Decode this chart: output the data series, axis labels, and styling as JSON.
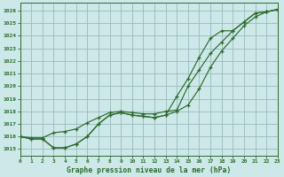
{
  "title": "Graphe pression niveau de la mer (hPa)",
  "bg_color": "#cce8e8",
  "grid_color": "#99bbbb",
  "line_color": "#2d6b2d",
  "xlim": [
    0,
    23
  ],
  "ylim": [
    1014.5,
    1026.6
  ],
  "yticks": [
    1015,
    1016,
    1017,
    1018,
    1019,
    1020,
    1021,
    1022,
    1023,
    1024,
    1025,
    1026
  ],
  "xticks": [
    0,
    1,
    2,
    3,
    4,
    5,
    6,
    7,
    8,
    9,
    10,
    11,
    12,
    13,
    14,
    15,
    16,
    17,
    18,
    19,
    20,
    21,
    22,
    23
  ],
  "curve_top": [
    1016.0,
    1015.9,
    1015.9,
    1016.3,
    1016.4,
    1016.6,
    1017.1,
    1017.5,
    1017.9,
    1018.0,
    1017.9,
    1017.8,
    1017.8,
    1018.0,
    1018.1,
    1020.0,
    1021.3,
    1022.6,
    1023.5,
    1024.4,
    1025.1,
    1025.8,
    1025.9,
    1026.1
  ],
  "curve_mid": [
    1016.0,
    1015.8,
    1015.8,
    1015.1,
    1015.1,
    1015.4,
    1016.0,
    1017.0,
    1017.7,
    1017.9,
    1017.7,
    1017.6,
    1017.5,
    1017.7,
    1018.0,
    1018.5,
    1019.8,
    1021.5,
    1022.8,
    1023.8,
    1024.8,
    1025.5,
    1025.9,
    1026.1
  ],
  "curve_bot": [
    1016.0,
    1015.8,
    1015.8,
    1015.1,
    1015.1,
    1015.4,
    1016.0,
    1017.0,
    1017.7,
    1017.9,
    1017.7,
    1017.6,
    1017.5,
    1017.7,
    1019.2,
    1020.6,
    1022.3,
    1023.8,
    1024.4,
    1024.4,
    1025.1,
    1025.8,
    1025.9,
    1026.1
  ]
}
